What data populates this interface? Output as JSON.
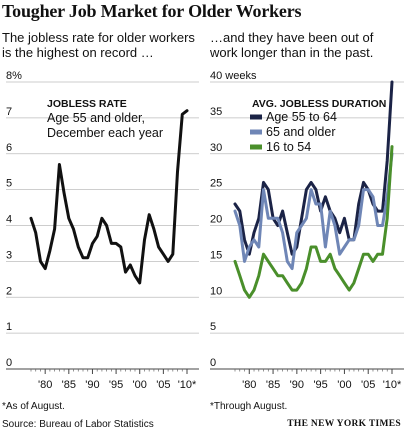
{
  "header": {
    "title": "Tougher Job Market for Older Workers"
  },
  "left": {
    "subtitle_line1": "The jobless rate for older workers",
    "subtitle_line2": "is the highest on record …",
    "footnote": "*As of August."
  },
  "right": {
    "subtitle_line1": "…and they have been out of",
    "subtitle_line2": "work longer than in the past.",
    "footnote": "*Through August."
  },
  "footer": {
    "source": "Source: Bureau of Labor Statistics",
    "credit": "THE NEW YORK TIMES"
  },
  "chart_data": [
    {
      "type": "line",
      "title": "JOBLESS RATE",
      "annotation": [
        "Age 55 and older,",
        "December each year"
      ],
      "ylim": [
        0,
        8
      ],
      "y_ticks": [
        "8%",
        "7",
        "6",
        "5",
        "4",
        "3",
        "2",
        "1",
        "0"
      ],
      "x_ticks": [
        "'80",
        "'85",
        "'90",
        "'95",
        "'00",
        "'05",
        "'10*"
      ],
      "grid": true,
      "x": [
        1977,
        1978,
        1979,
        1980,
        1981,
        1982,
        1983,
        1984,
        1985,
        1986,
        1987,
        1988,
        1989,
        1990,
        1991,
        1992,
        1993,
        1994,
        1995,
        1996,
        1997,
        1998,
        1999,
        2000,
        2001,
        2002,
        2003,
        2004,
        2005,
        2006,
        2007,
        2008,
        2009,
        2010
      ],
      "series": [
        {
          "color": "#111111",
          "values": [
            4.2,
            3.8,
            3.0,
            2.8,
            3.3,
            3.9,
            5.7,
            4.9,
            4.2,
            3.9,
            3.4,
            3.1,
            3.1,
            3.5,
            3.7,
            4.2,
            4.0,
            3.5,
            3.5,
            3.4,
            2.7,
            2.9,
            2.6,
            2.4,
            3.6,
            4.3,
            3.9,
            3.4,
            3.2,
            3.0,
            3.2,
            5.5,
            7.1,
            7.2
          ]
        }
      ]
    },
    {
      "type": "line",
      "title": "AVG. JOBLESS DURATION",
      "ylim": [
        0,
        40
      ],
      "y_ticks": [
        "40 weeks",
        "35",
        "30",
        "25",
        "20",
        "15",
        "10",
        "5",
        "0"
      ],
      "x_ticks": [
        "'80",
        "'85",
        "'90",
        "'95",
        "'00",
        "'05",
        "'10*"
      ],
      "grid": true,
      "x": [
        1977,
        1978,
        1979,
        1980,
        1981,
        1982,
        1983,
        1984,
        1985,
        1986,
        1987,
        1988,
        1989,
        1990,
        1991,
        1992,
        1993,
        1994,
        1995,
        1996,
        1997,
        1998,
        1999,
        2000,
        2001,
        2002,
        2003,
        2004,
        2005,
        2006,
        2007,
        2008,
        2009,
        2010
      ],
      "series": [
        {
          "name": "Age 55 to 64",
          "color": "#1b2346",
          "values": [
            23,
            22,
            18,
            16,
            19,
            21,
            26,
            25,
            21,
            20,
            22,
            19,
            16,
            17,
            21,
            25,
            26,
            25,
            22,
            24,
            22,
            21,
            19,
            21,
            18,
            18,
            23,
            26,
            25,
            23,
            22,
            22,
            29,
            40
          ]
        },
        {
          "name": "65 and older",
          "color": "#6f86b6",
          "values": [
            22,
            20,
            15,
            17,
            18,
            17,
            25,
            21,
            21,
            21,
            19,
            15,
            14,
            19,
            20,
            21,
            25,
            23,
            23,
            17,
            22,
            20,
            16,
            17,
            18,
            18,
            20,
            25,
            25,
            24,
            20,
            20,
            24,
            30
          ]
        },
        {
          "name": "16 to 54",
          "color": "#4a8f2b",
          "values": [
            15,
            13,
            11,
            10,
            11,
            13,
            16,
            15,
            14,
            13,
            13,
            12,
            11,
            11,
            12,
            14,
            17,
            17,
            15,
            15,
            16,
            14,
            13,
            12,
            11,
            12,
            14,
            16,
            16,
            15,
            16,
            16,
            21,
            31
          ]
        }
      ]
    }
  ]
}
